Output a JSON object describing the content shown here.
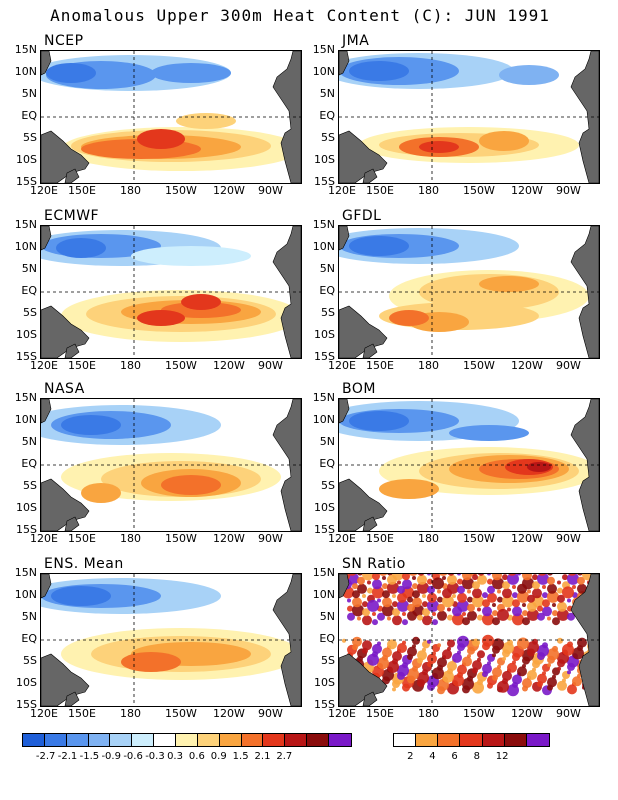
{
  "title": "Anomalous Upper 300m Heat Content (C): JUN 1991",
  "lat_labels": [
    "15N",
    "10N",
    "5N",
    "EQ",
    "5S",
    "10S",
    "15S"
  ],
  "lon_labels": [
    "120E",
    "150E",
    "180",
    "150W",
    "120W",
    "90W"
  ],
  "panels": [
    {
      "name": "NCEP"
    },
    {
      "name": "JMA"
    },
    {
      "name": "ECMWF"
    },
    {
      "name": "GFDL"
    },
    {
      "name": "NASA"
    },
    {
      "name": "BOM"
    },
    {
      "name": "ENS. Mean"
    },
    {
      "name": "SN Ratio"
    }
  ],
  "anomaly_colorbar": {
    "colors": [
      "#1f5fd8",
      "#3a7ae6",
      "#5a96ee",
      "#7fb2f2",
      "#a8d2f7",
      "#cdeefd",
      "#ffffff",
      "#fff2b0",
      "#fdd27a",
      "#f9a540",
      "#f3712a",
      "#e3371c",
      "#b81616",
      "#8a0c0c",
      "#7a19c8"
    ],
    "ticks": [
      "-2.7",
      "-2.1",
      "-1.5",
      "-0.9",
      "-0.6",
      "-0.3",
      "0.3",
      "0.6",
      "0.9",
      "1.5",
      "2.1",
      "2.7"
    ]
  },
  "sn_colorbar": {
    "colors": [
      "#ffffff",
      "#f9a540",
      "#f3712a",
      "#e3371c",
      "#b81616",
      "#8a0c0c",
      "#7a19c8"
    ],
    "ticks": [
      "2",
      "4",
      "6",
      "8",
      "12"
    ]
  }
}
